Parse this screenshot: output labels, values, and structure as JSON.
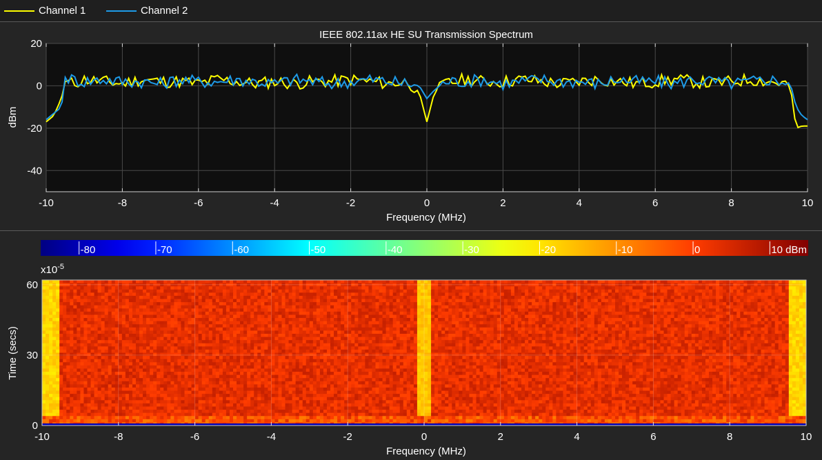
{
  "legend": {
    "items": [
      {
        "label": "Channel 1",
        "color": "#ffff00"
      },
      {
        "label": "Channel 2",
        "color": "#1e9be8"
      }
    ]
  },
  "chart_data": [
    {
      "type": "line",
      "title": "IEEE 802.11ax HE SU Transmission Spectrum",
      "xlabel": "Frequency (MHz)",
      "ylabel": "dBm",
      "xlim": [
        -10,
        10
      ],
      "ylim": [
        -50,
        20
      ],
      "xticks": [
        -10,
        -8,
        -6,
        -4,
        -2,
        0,
        2,
        4,
        6,
        8,
        10
      ],
      "yticks": [
        -40,
        -20,
        0,
        20
      ],
      "grid": true,
      "background": "#0f0f0f",
      "series": [
        {
          "name": "Channel 1",
          "color": "#ffff00",
          "x": [
            -10,
            -9.8,
            -9.6,
            -9.5,
            -9.3,
            -9.0,
            -8.5,
            -8.0,
            -7.5,
            -7.0,
            -6.5,
            -6.0,
            -5.5,
            -5.0,
            -4.5,
            -4.0,
            -3.5,
            -3.0,
            -2.5,
            -2.0,
            -1.5,
            -1.0,
            -0.5,
            -0.2,
            0,
            0.2,
            0.5,
            1.0,
            1.5,
            2.0,
            2.5,
            3.0,
            3.5,
            4.0,
            4.5,
            5.0,
            5.5,
            6.0,
            6.5,
            7.0,
            7.5,
            8.0,
            8.5,
            9.0,
            9.4,
            9.55,
            9.7,
            9.85,
            10
          ],
          "y": [
            -17,
            -14,
            -6,
            2,
            1,
            3,
            2,
            1,
            3,
            2,
            2,
            1,
            3,
            2,
            1,
            2,
            1,
            2,
            2,
            3,
            2,
            1,
            2,
            -3,
            -17,
            -3,
            1,
            3,
            2,
            2,
            3,
            2,
            1,
            2,
            3,
            2,
            1,
            2,
            3,
            2,
            1,
            2,
            3,
            2,
            1,
            0,
            -20,
            -19,
            -19
          ]
        },
        {
          "name": "Channel 2",
          "color": "#1e9be8",
          "x": [
            -10,
            -9.8,
            -9.6,
            -9.5,
            -9.3,
            -9.0,
            -8.5,
            -8.0,
            -7.5,
            -7.0,
            -6.5,
            -6.0,
            -5.5,
            -5.0,
            -4.5,
            -4.0,
            -3.5,
            -3.0,
            -2.5,
            -2.0,
            -1.5,
            -1.0,
            -0.5,
            -0.2,
            0,
            0.2,
            0.5,
            1.0,
            1.5,
            2.0,
            2.5,
            3.0,
            3.5,
            4.0,
            4.5,
            5.0,
            5.5,
            6.0,
            6.5,
            7.0,
            7.5,
            8.0,
            8.5,
            9.0,
            9.4,
            9.55,
            9.7,
            9.85,
            10
          ],
          "y": [
            -16,
            -13,
            -10,
            4,
            3,
            2,
            3,
            2,
            2,
            1,
            3,
            2,
            2,
            3,
            2,
            1,
            3,
            2,
            1,
            2,
            3,
            2,
            1,
            0,
            -6,
            -2,
            2,
            2,
            3,
            1,
            2,
            3,
            2,
            2,
            1,
            3,
            2,
            2,
            1,
            3,
            2,
            1,
            2,
            3,
            2,
            1,
            -10,
            -14,
            -16
          ]
        }
      ]
    },
    {
      "type": "heatmap",
      "xlabel": "Frequency (MHz)",
      "ylabel": "Time (secs)",
      "y_exponent_label": "x10",
      "y_exponent_power": "-5",
      "xlim": [
        -10,
        10
      ],
      "ylim": [
        0,
        62
      ],
      "xticks": [
        -10,
        -8,
        -6,
        -4,
        -2,
        0,
        2,
        4,
        6,
        8,
        10
      ],
      "yticks": [
        0,
        30,
        60
      ],
      "colorbar": {
        "ticks": [
          "-80",
          "-70",
          "-60",
          "-50",
          "-40",
          "-30",
          "-20",
          "-10",
          "0",
          "10"
        ],
        "unit": "dBm",
        "range": [
          -85,
          15
        ]
      },
      "bands_dbm": {
        "occupied": 3,
        "dc_notch": -16,
        "band_edge": -18,
        "noise_floor": -80
      },
      "occupied_band_mhz": [
        -9.5,
        9.5
      ],
      "dc_notch_mhz": [
        -0.15,
        0.15
      ]
    }
  ]
}
